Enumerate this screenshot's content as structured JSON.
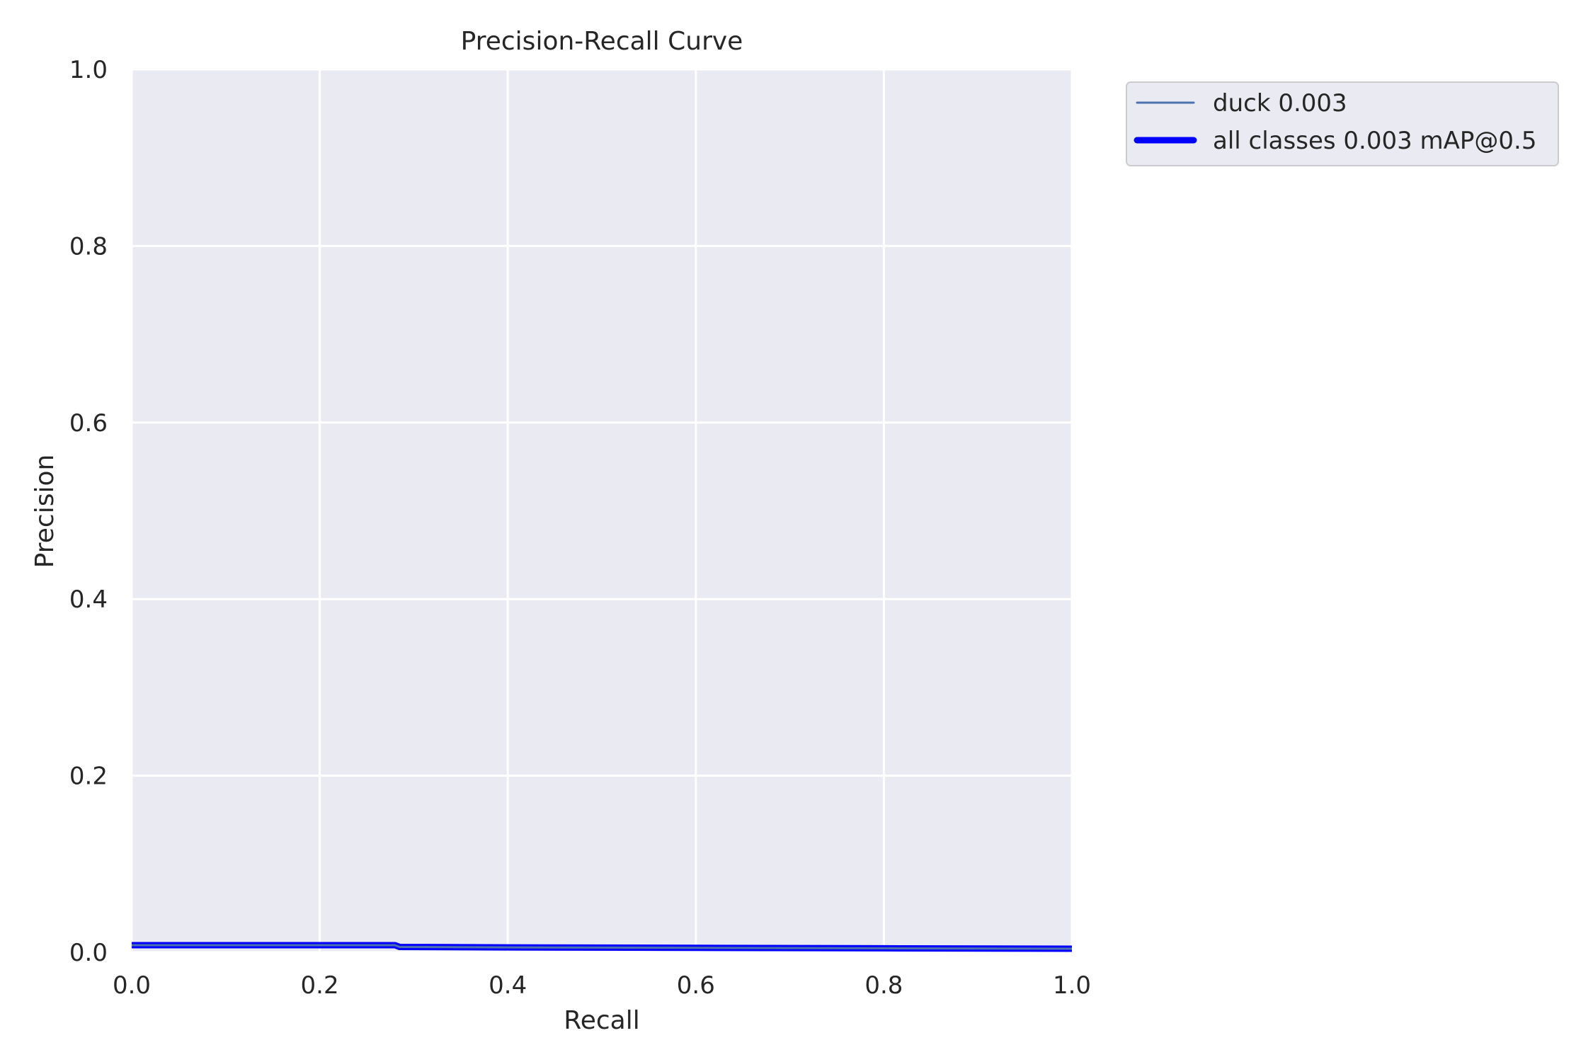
{
  "chart_data": {
    "type": "line",
    "title": "Precision-Recall Curve",
    "xlabel": "Recall",
    "ylabel": "Precision",
    "xlim": [
      0.0,
      1.0
    ],
    "ylim": [
      0.0,
      1.0
    ],
    "xticks": [
      "0.0",
      "0.2",
      "0.4",
      "0.6",
      "0.8",
      "1.0"
    ],
    "yticks": [
      "0.0",
      "0.2",
      "0.4",
      "0.6",
      "0.8",
      "1.0"
    ],
    "grid": true,
    "legend_position": "outside-upper-right",
    "background_color": "#eaeaf2",
    "grid_color": "#ffffff",
    "series": [
      {
        "name": "duck 0.003",
        "color": "#4c72b0",
        "line_weight": "thin",
        "points": [
          [
            0.0,
            0.008
          ],
          [
            0.28,
            0.008
          ],
          [
            0.285,
            0.006
          ],
          [
            0.4,
            0.0055
          ],
          [
            0.6,
            0.005
          ],
          [
            0.8,
            0.0045
          ],
          [
            1.0,
            0.004
          ]
        ]
      },
      {
        "name": "all classes 0.003 mAP@0.5",
        "color": "#0000ff",
        "line_weight": "thick",
        "points": [
          [
            0.0,
            0.008
          ],
          [
            0.28,
            0.008
          ],
          [
            0.285,
            0.006
          ],
          [
            0.4,
            0.0055
          ],
          [
            0.6,
            0.005
          ],
          [
            0.8,
            0.0045
          ],
          [
            1.0,
            0.004
          ]
        ]
      }
    ]
  }
}
